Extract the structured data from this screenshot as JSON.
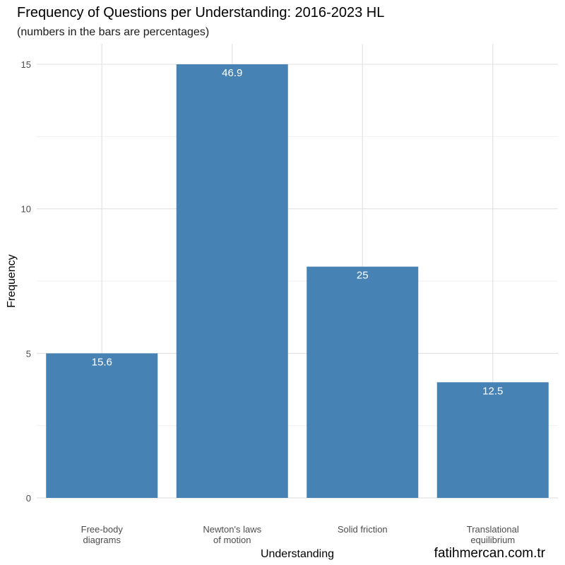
{
  "chart_data": {
    "type": "bar",
    "title": "Frequency of Questions per Understanding: 2016-2023 HL",
    "subtitle": "(numbers in the bars are percentages)",
    "xlabel": "Understanding",
    "ylabel": "Frequency",
    "categories": [
      [
        "Free-body",
        "diagrams"
      ],
      [
        "Newton's laws",
        "of motion"
      ],
      [
        "Solid friction"
      ],
      [
        "Translational",
        "equilibrium"
      ]
    ],
    "values": [
      5,
      15,
      8,
      4
    ],
    "data_labels": [
      "15.6",
      "46.9",
      "25",
      "12.5"
    ],
    "ylim": [
      0,
      15.9
    ],
    "yticks": [
      0,
      5,
      10,
      15
    ],
    "grid": true,
    "bar_color": "#4682B4",
    "caption": "fatihmercan.com.tr"
  }
}
